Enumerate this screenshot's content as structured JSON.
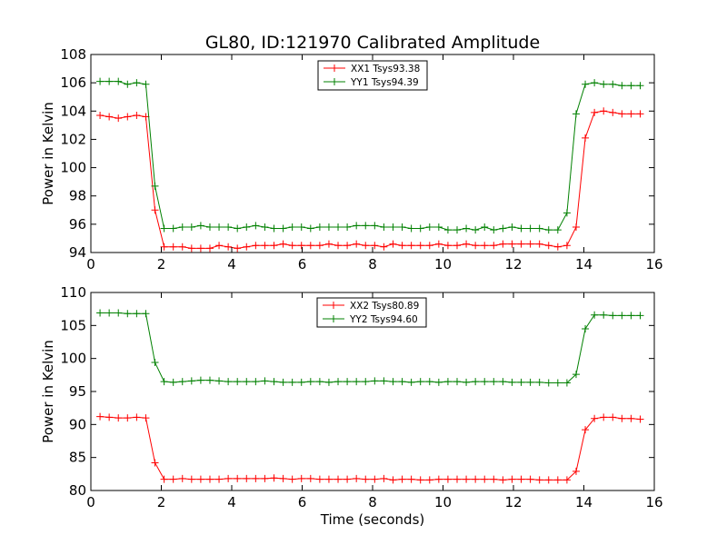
{
  "title": "GL80, ID:121970 Calibrated Amplitude",
  "chart_data": [
    {
      "type": "line",
      "title": "GL80, ID:121970 Calibrated Amplitude",
      "xlabel": "",
      "ylabel": "Power in Kelvin",
      "xlim": [
        0,
        16
      ],
      "ylim": [
        94,
        108
      ],
      "xticks": [
        0,
        2,
        4,
        6,
        8,
        10,
        12,
        14,
        16
      ],
      "yticks": [
        94,
        96,
        98,
        100,
        102,
        104,
        106,
        108
      ],
      "legend_position": "top-center",
      "x": [
        0.26,
        0.52,
        0.78,
        1.04,
        1.3,
        1.56,
        1.82,
        2.08,
        2.34,
        2.6,
        2.86,
        3.12,
        3.38,
        3.64,
        3.9,
        4.16,
        4.42,
        4.68,
        4.94,
        5.2,
        5.46,
        5.72,
        5.98,
        6.24,
        6.5,
        6.76,
        7.02,
        7.28,
        7.54,
        7.8,
        8.06,
        8.32,
        8.58,
        8.84,
        9.1,
        9.36,
        9.62,
        9.88,
        10.14,
        10.4,
        10.66,
        10.92,
        11.18,
        11.44,
        11.7,
        11.96,
        12.22,
        12.48,
        12.74,
        13.0,
        13.26,
        13.52,
        13.78,
        14.04,
        14.3,
        14.56,
        14.82,
        15.08,
        15.34,
        15.6
      ],
      "series": [
        {
          "name": "XX1 Tsys93.38",
          "color": "#ff0000",
          "values": [
            103.7,
            103.6,
            103.5,
            103.6,
            103.7,
            103.6,
            97.0,
            94.4,
            94.4,
            94.4,
            94.3,
            94.3,
            94.3,
            94.5,
            94.4,
            94.3,
            94.4,
            94.5,
            94.5,
            94.5,
            94.6,
            94.5,
            94.5,
            94.5,
            94.5,
            94.6,
            94.5,
            94.5,
            94.6,
            94.5,
            94.5,
            94.4,
            94.6,
            94.5,
            94.5,
            94.5,
            94.5,
            94.6,
            94.5,
            94.5,
            94.6,
            94.5,
            94.5,
            94.5,
            94.6,
            94.6,
            94.6,
            94.6,
            94.6,
            94.5,
            94.4,
            94.5,
            95.8,
            102.1,
            103.9,
            104.0,
            103.9,
            103.8,
            103.8,
            103.8
          ]
        },
        {
          "name": "YY1 Tsys94.39",
          "color": "#008000",
          "values": [
            106.1,
            106.1,
            106.1,
            105.9,
            106.0,
            105.9,
            98.7,
            95.7,
            95.7,
            95.8,
            95.8,
            95.9,
            95.8,
            95.8,
            95.8,
            95.7,
            95.8,
            95.9,
            95.8,
            95.7,
            95.7,
            95.8,
            95.8,
            95.7,
            95.8,
            95.8,
            95.8,
            95.8,
            95.9,
            95.9,
            95.9,
            95.8,
            95.8,
            95.8,
            95.7,
            95.7,
            95.8,
            95.8,
            95.6,
            95.6,
            95.7,
            95.6,
            95.8,
            95.6,
            95.7,
            95.8,
            95.7,
            95.7,
            95.7,
            95.6,
            95.6,
            96.8,
            103.8,
            105.9,
            106.0,
            105.9,
            105.9,
            105.8,
            105.8,
            105.8
          ]
        }
      ]
    },
    {
      "type": "line",
      "title": "",
      "xlabel": "Time (seconds)",
      "ylabel": "Power in Kelvin",
      "xlim": [
        0,
        16
      ],
      "ylim": [
        80,
        110
      ],
      "xticks": [
        0,
        2,
        4,
        6,
        8,
        10,
        12,
        14,
        16
      ],
      "yticks": [
        80,
        85,
        90,
        95,
        100,
        105,
        110
      ],
      "legend_position": "top-center",
      "x": [
        0.26,
        0.52,
        0.78,
        1.04,
        1.3,
        1.56,
        1.82,
        2.08,
        2.34,
        2.6,
        2.86,
        3.12,
        3.38,
        3.64,
        3.9,
        4.16,
        4.42,
        4.68,
        4.94,
        5.2,
        5.46,
        5.72,
        5.98,
        6.24,
        6.5,
        6.76,
        7.02,
        7.28,
        7.54,
        7.8,
        8.06,
        8.32,
        8.58,
        8.84,
        9.1,
        9.36,
        9.62,
        9.88,
        10.14,
        10.4,
        10.66,
        10.92,
        11.18,
        11.44,
        11.7,
        11.96,
        12.22,
        12.48,
        12.74,
        13.0,
        13.26,
        13.52,
        13.78,
        14.04,
        14.3,
        14.56,
        14.82,
        15.08,
        15.34,
        15.6
      ],
      "series": [
        {
          "name": "XX2 Tsys80.89",
          "color": "#ff0000",
          "values": [
            91.2,
            91.1,
            91.0,
            91.0,
            91.1,
            91.0,
            84.2,
            81.7,
            81.7,
            81.8,
            81.7,
            81.7,
            81.7,
            81.7,
            81.8,
            81.8,
            81.8,
            81.8,
            81.8,
            81.9,
            81.8,
            81.7,
            81.8,
            81.8,
            81.7,
            81.7,
            81.7,
            81.7,
            81.8,
            81.7,
            81.7,
            81.8,
            81.6,
            81.7,
            81.7,
            81.6,
            81.6,
            81.7,
            81.7,
            81.7,
            81.7,
            81.7,
            81.7,
            81.7,
            81.6,
            81.7,
            81.7,
            81.7,
            81.6,
            81.6,
            81.6,
            81.6,
            82.9,
            89.2,
            90.9,
            91.1,
            91.1,
            90.9,
            90.9,
            90.8
          ]
        },
        {
          "name": "YY2 Tsys94.60",
          "color": "#008000",
          "values": [
            106.9,
            106.9,
            106.9,
            106.8,
            106.8,
            106.8,
            99.4,
            96.5,
            96.4,
            96.5,
            96.6,
            96.7,
            96.7,
            96.6,
            96.5,
            96.5,
            96.5,
            96.5,
            96.6,
            96.5,
            96.4,
            96.4,
            96.4,
            96.5,
            96.5,
            96.4,
            96.5,
            96.5,
            96.5,
            96.5,
            96.6,
            96.6,
            96.5,
            96.5,
            96.4,
            96.5,
            96.5,
            96.4,
            96.5,
            96.5,
            96.4,
            96.5,
            96.5,
            96.5,
            96.5,
            96.4,
            96.4,
            96.4,
            96.4,
            96.3,
            96.3,
            96.3,
            97.6,
            104.5,
            106.6,
            106.6,
            106.5,
            106.5,
            106.5,
            106.5
          ]
        }
      ]
    }
  ]
}
